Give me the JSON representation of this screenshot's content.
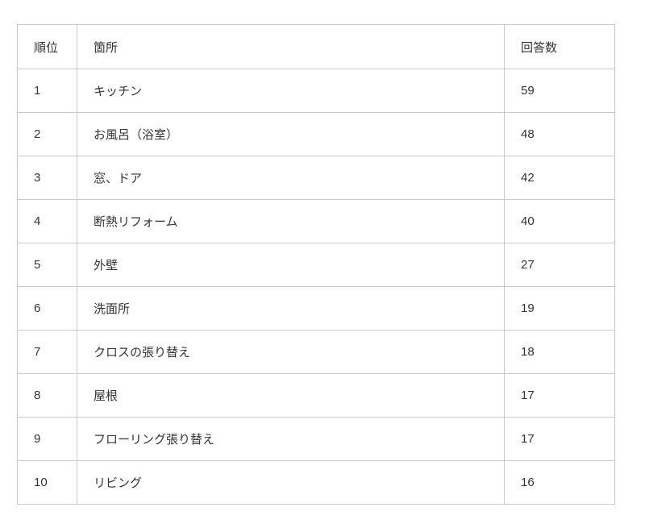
{
  "colors": {
    "background": "#ffffff",
    "border": "#c9c9c9",
    "text": "#333333"
  },
  "table": {
    "headers": {
      "rank": "順位",
      "location": "箇所",
      "count": "回答数"
    },
    "rows": [
      {
        "rank": "1",
        "location": "キッチン",
        "count": "59"
      },
      {
        "rank": "2",
        "location": "お風呂（浴室）",
        "count": "48"
      },
      {
        "rank": "3",
        "location": "窓、ドア",
        "count": "42"
      },
      {
        "rank": "4",
        "location": "断熱リフォーム",
        "count": "40"
      },
      {
        "rank": "5",
        "location": "外壁",
        "count": "27"
      },
      {
        "rank": "6",
        "location": "洗面所",
        "count": "19"
      },
      {
        "rank": "7",
        "location": "クロスの張り替え",
        "count": "18"
      },
      {
        "rank": "8",
        "location": "屋根",
        "count": "17"
      },
      {
        "rank": "9",
        "location": "フローリング張り替え",
        "count": "17"
      },
      {
        "rank": "10",
        "location": "リビング",
        "count": "16"
      }
    ]
  },
  "chart_data": {
    "type": "table",
    "title": "",
    "columns": [
      "順位",
      "箇所",
      "回答数"
    ],
    "categories": [
      "キッチン",
      "お風呂（浴室）",
      "窓、ドア",
      "断熱リフォーム",
      "外壁",
      "洗面所",
      "クロスの張り替え",
      "屋根",
      "フローリング張り替え",
      "リビング"
    ],
    "values": [
      59,
      48,
      42,
      40,
      27,
      19,
      18,
      17,
      17,
      16
    ],
    "ranks": [
      1,
      2,
      3,
      4,
      5,
      6,
      7,
      8,
      9,
      10
    ]
  }
}
